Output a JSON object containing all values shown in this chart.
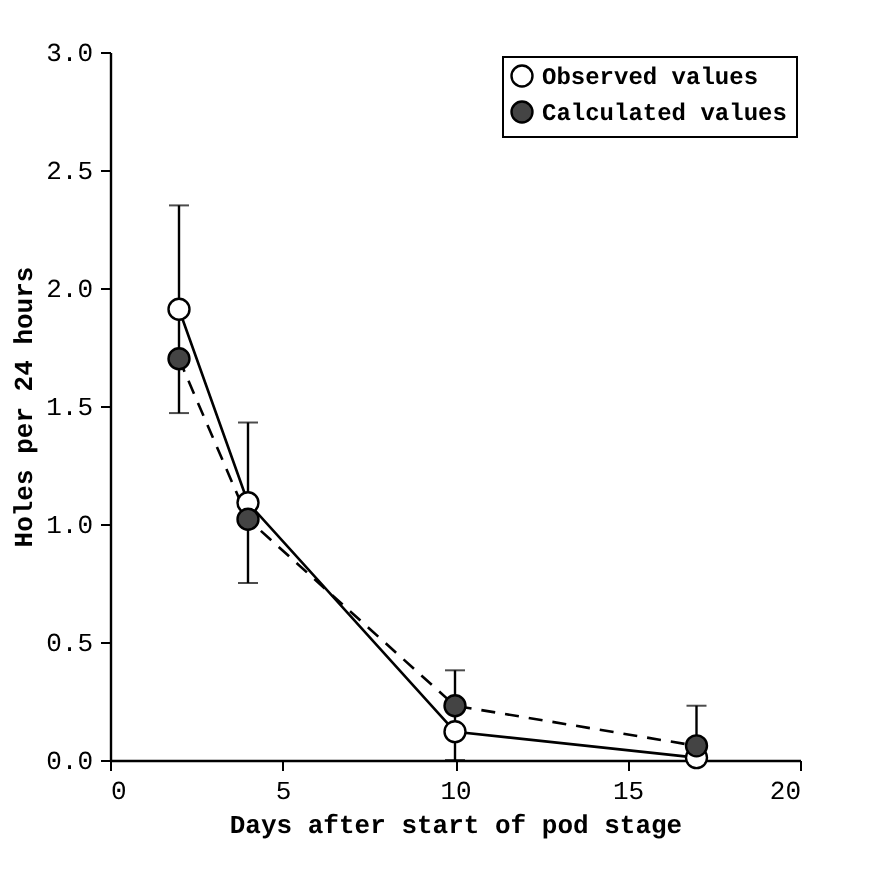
{
  "chart_data": {
    "type": "line",
    "xlabel": "Days after start of pod stage",
    "ylabel": "Holes per 24 hours",
    "x": [
      2,
      4,
      10,
      17
    ],
    "series": [
      {
        "name": "Observed values",
        "color": "#ffffff",
        "line_style": "solid",
        "values": [
          1.91,
          1.09,
          0.12,
          0.01
        ],
        "errors": [
          0.44,
          0.34,
          [
            0.0,
            0.38
          ],
          [
            0.0,
            0.23
          ]
        ]
      },
      {
        "name": "Calculated values",
        "color": "#444444",
        "line_style": "dashed",
        "values": [
          1.7,
          1.02,
          0.23,
          0.06
        ]
      }
    ],
    "xlim": [
      0,
      20
    ],
    "xticks": [
      0,
      5,
      10,
      15,
      20
    ],
    "ylim": [
      0,
      3
    ],
    "yticks": [
      {
        "value": 0,
        "label": "0.0"
      },
      {
        "value": 0.5,
        "label": "0.5"
      },
      {
        "value": 1,
        "label": "1.0"
      },
      {
        "value": 1.5,
        "label": "1.5"
      },
      {
        "value": 2,
        "label": "2.0"
      },
      {
        "value": 2.5,
        "label": "2.5"
      },
      {
        "value": 3,
        "label": "3.0"
      }
    ],
    "marker": "circle",
    "grid": false,
    "legend": "top right"
  }
}
